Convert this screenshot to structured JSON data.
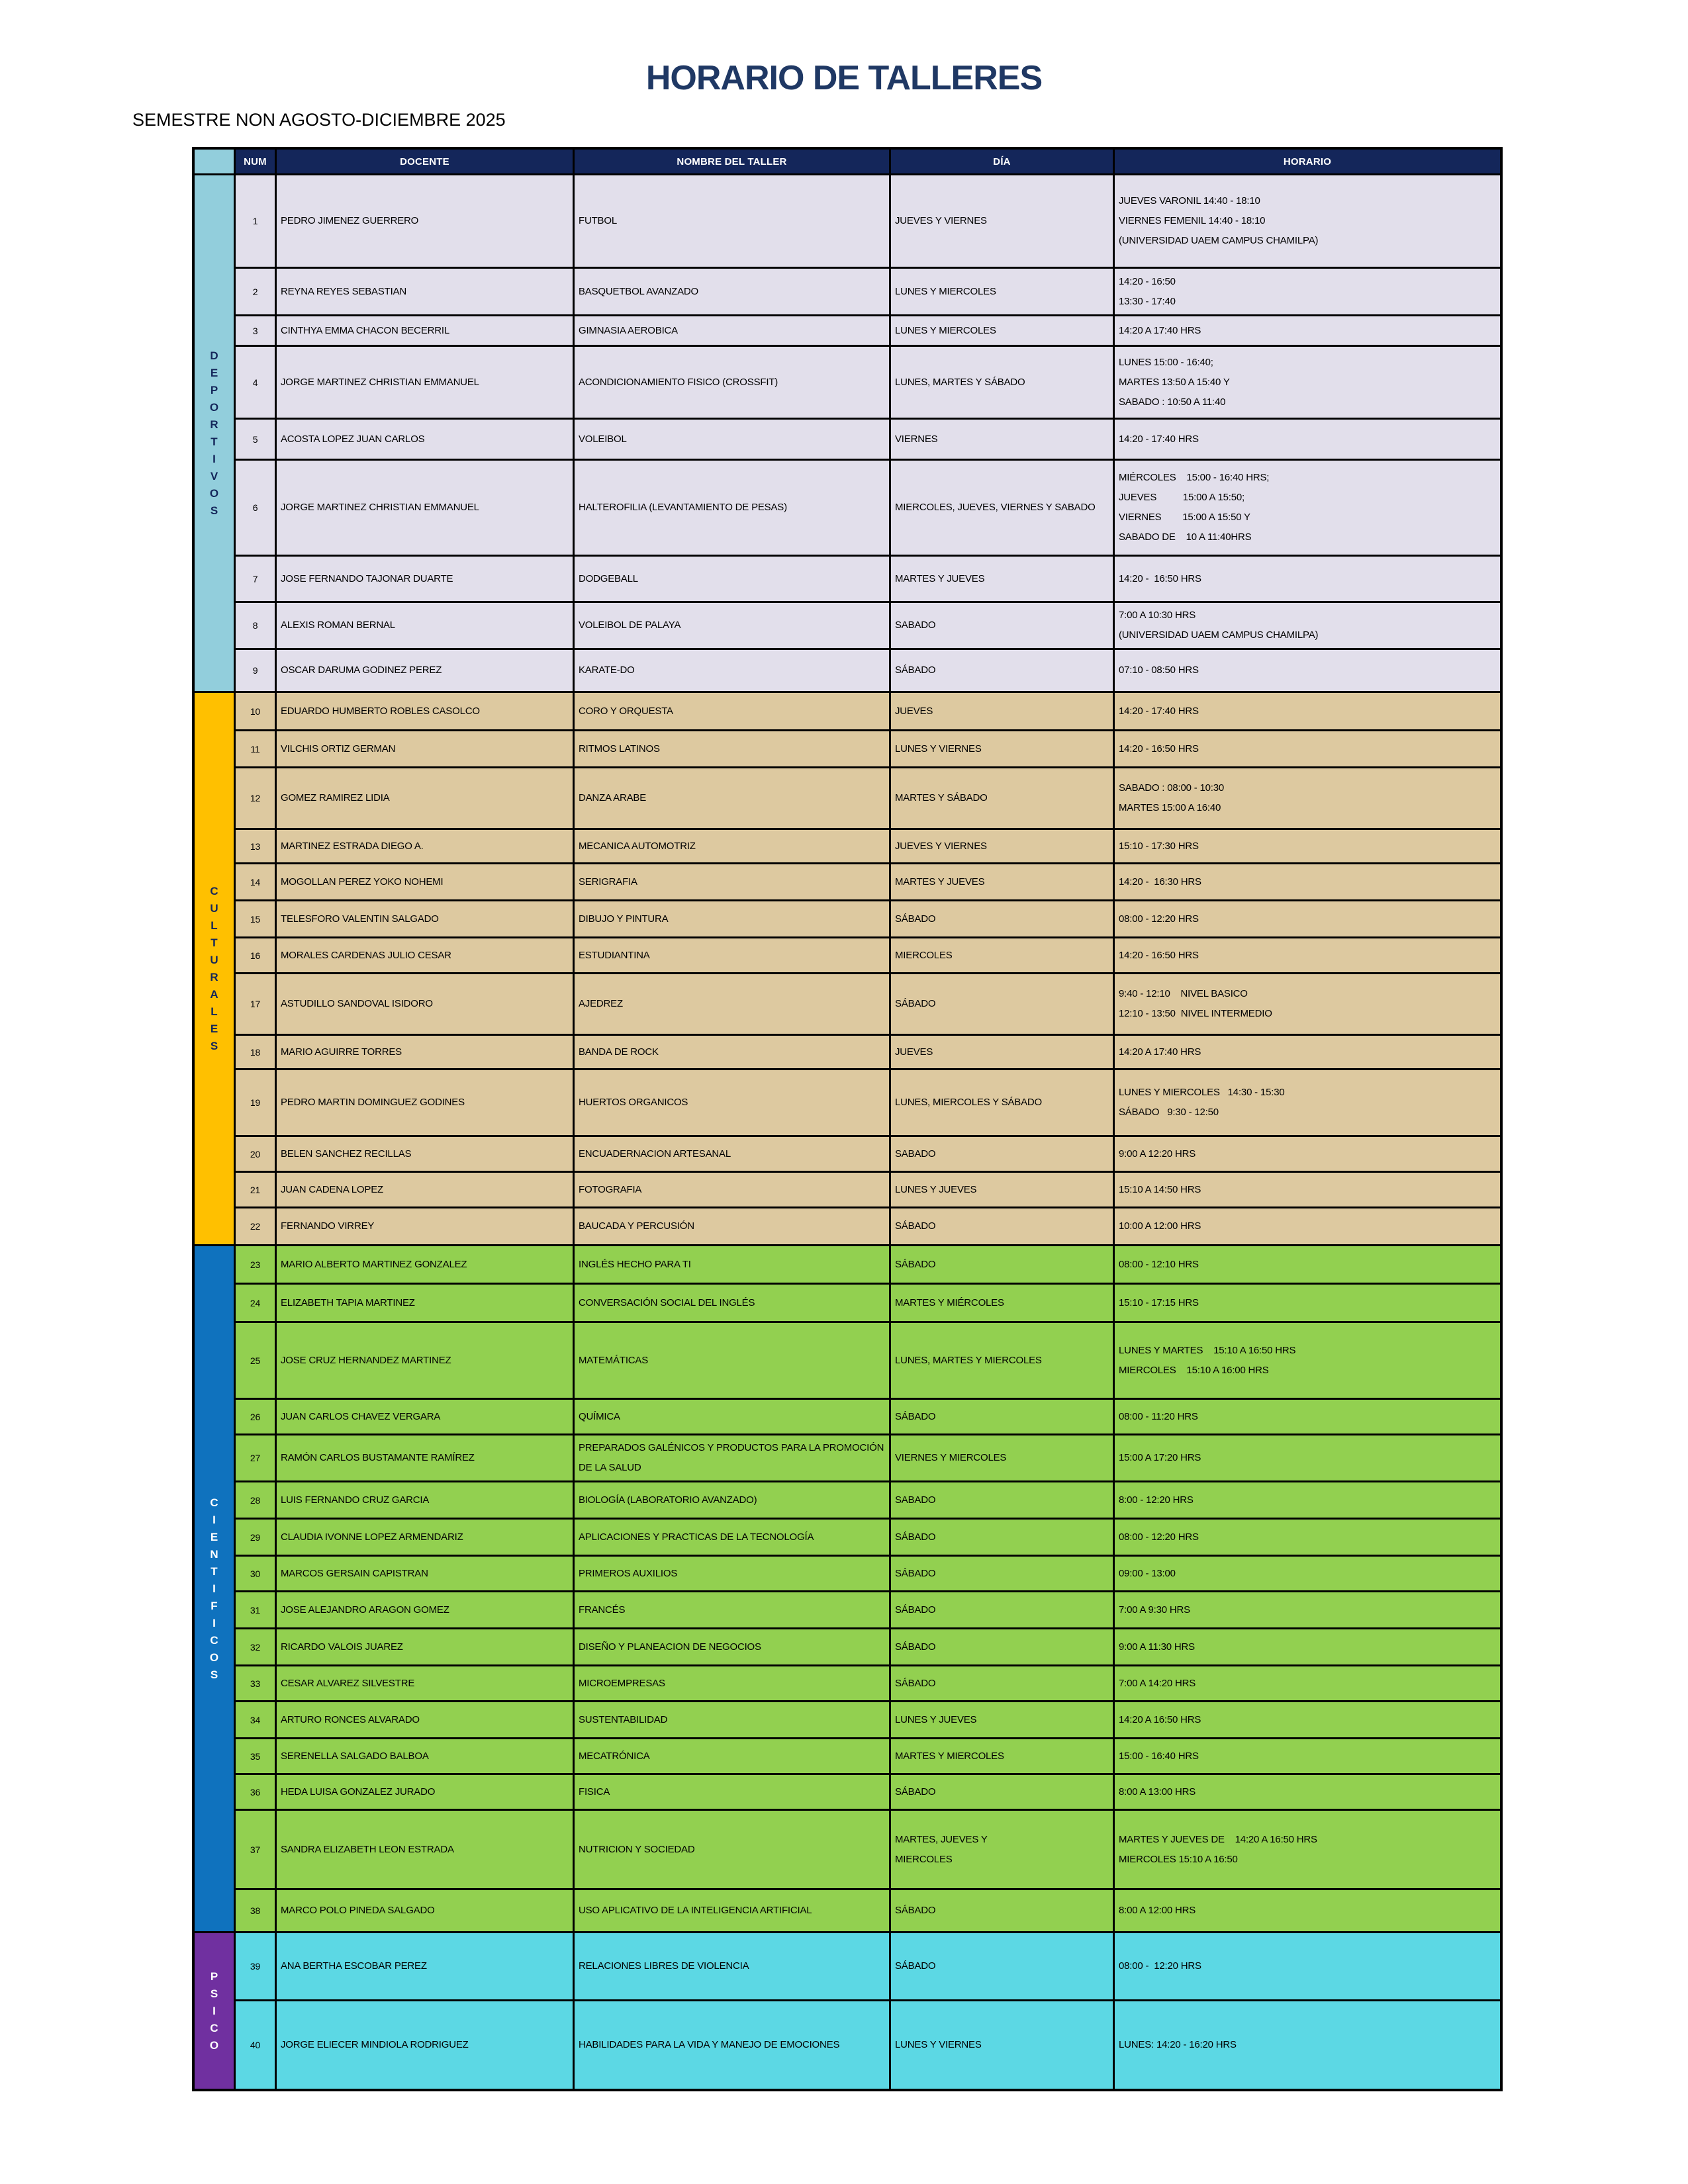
{
  "page": {
    "title": "HORARIO DE TALLERES",
    "subtitle": "SEMESTRE NON AGOSTO-DICIEMBRE 2025"
  },
  "colors": {
    "title": "#1F3864",
    "header_bg": "#14265A",
    "header_text": "#FFFFFF",
    "border": "#000000",
    "page_bg": "#FFFFFF"
  },
  "table": {
    "headers": [
      "NUM",
      "DOCENTE",
      "NOMBRE DEL TALLER",
      "DÍA",
      "HORARIO"
    ],
    "sections": [
      {
        "name": "DEPORTIVOS",
        "band_color": "#92CEDC",
        "letter_color": "#14265A",
        "row_color": "#E2DFEB",
        "rows": [
          {
            "num": 1,
            "docente": "PEDRO JIMENEZ GUERRERO",
            "taller": "FUTBOL",
            "dia": "JUEVES Y VIERNES",
            "horario": "JUEVES VARONIL 14:40 - 18:10\nVIERNES FEMENIL 14:40 - 18:10\n(UNIVERSIDAD UAEM CAMPUS CHAMILPA)",
            "h": 141
          },
          {
            "num": 2,
            "docente": "REYNA REYES SEBASTIAN",
            "taller": "BASQUETBOL AVANZADO",
            "dia": "LUNES Y MIERCOLES",
            "horario": "14:20 - 16:50\n13:30 - 17:40",
            "h": 72
          },
          {
            "num": 3,
            "docente": "CINTHYA EMMA CHACON BECERRIL",
            "taller": "GIMNASIA AEROBICA",
            "dia": "LUNES Y MIERCOLES",
            "horario": "14:20 A 17:40 HRS",
            "h": 46
          },
          {
            "num": 4,
            "docente": "JORGE MARTINEZ CHRISTIAN EMMANUEL",
            "taller": "ACONDICIONAMIENTO FISICO (CROSSFIT)",
            "dia": "LUNES, MARTES Y SÁBADO",
            "horario": "LUNES 15:00 - 16:40;\nMARTES 13:50 A 15:40 Y\nSABADO : 10:50 A 11:40",
            "h": 110
          },
          {
            "num": 5,
            "docente": "ACOSTA LOPEZ JUAN CARLOS",
            "taller": "VOLEIBOL",
            "dia": "VIERNES",
            "horario": "14:20 - 17:40 HRS",
            "h": 62
          },
          {
            "num": 6,
            "docente": "JORGE MARTINEZ CHRISTIAN EMMANUEL",
            "taller": "HALTEROFILIA (LEVANTAMIENTO DE PESAS)",
            "dia": "MIERCOLES, JUEVES, VIERNES Y SABADO",
            "horario": "MIÉRCOLES    15:00 - 16:40 HRS;\nJUEVES          15:00 A 15:50;\nVIERNES        15:00 A 15:50 Y\nSABADO DE    10 A 11:40HRS",
            "h": 145
          },
          {
            "num": 7,
            "docente": "JOSE FERNANDO TAJONAR DUARTE",
            "taller": "DODGEBALL",
            "dia": "MARTES Y JUEVES",
            "horario": "14:20 -  16:50 HRS",
            "h": 70
          },
          {
            "num": 8,
            "docente": "ALEXIS ROMAN BERNAL",
            "taller": "VOLEIBOL DE PALAYA",
            "dia": "SABADO",
            "horario": "7:00 A 10:30 HRS\n(UNIVERSIDAD UAEM CAMPUS CHAMILPA)",
            "h": 66
          },
          {
            "num": 9,
            "docente": "OSCAR DARUMA GODINEZ PEREZ",
            "taller": "KARATE-DO",
            "dia": "SÁBADO",
            "horario": "07:10 - 08:50 HRS",
            "h": 62
          }
        ]
      },
      {
        "name": "CULTURALES",
        "band_color": "#FFC000",
        "letter_color": "#14265A",
        "row_color": "#DDC9A0",
        "rows": [
          {
            "num": 10,
            "docente": "EDUARDO HUMBERTO ROBLES CASOLCO",
            "taller": "CORO Y ORQUESTA",
            "dia": "JUEVES",
            "horario": "14:20 - 17:40 HRS",
            "h": 58
          },
          {
            "num": 11,
            "docente": "VILCHIS ORTIZ GERMAN",
            "taller": "RITMOS LATINOS",
            "dia": "LUNES Y VIERNES",
            "horario": "14:20 - 16:50 HRS",
            "h": 56
          },
          {
            "num": 12,
            "docente": "GOMEZ RAMIREZ LIDIA",
            "taller": "DANZA ARABE",
            "dia": "MARTES Y SÁBADO",
            "horario": "SABADO : 08:00 - 10:30\nMARTES 15:00 A 16:40",
            "h": 93
          },
          {
            "num": 13,
            "docente": "MARTINEZ ESTRADA DIEGO A.",
            "taller": "MECANICA AUTOMOTRIZ",
            "dia": "JUEVES Y VIERNES",
            "horario": "15:10 - 17:30 HRS",
            "h": 52
          },
          {
            "num": 14,
            "docente": "MOGOLLAN PEREZ YOKO NOHEMI",
            "taller": "SERIGRAFIA",
            "dia": "MARTES Y JUEVES",
            "horario": "14:20 -  16:30 HRS",
            "h": 56
          },
          {
            "num": 15,
            "docente": "TELESFORO VALENTIN SALGADO",
            "taller": "DIBUJO Y PINTURA",
            "dia": "SÁBADO",
            "horario": "08:00 - 12:20 HRS",
            "h": 56
          },
          {
            "num": 16,
            "docente": "MORALES CARDENAS JULIO CESAR",
            "taller": "ESTUDIANTINA",
            "dia": "MIERCOLES",
            "horario": "14:20 - 16:50 HRS",
            "h": 54
          },
          {
            "num": 17,
            "docente": "ASTUDILLO SANDOVAL ISIDORO",
            "taller": "AJEDREZ",
            "dia": "SÁBADO",
            "horario": "9:40 - 12:10    NIVEL BASICO\n12:10 - 13:50  NIVEL INTERMEDIO",
            "h": 93
          },
          {
            "num": 18,
            "docente": "MARIO AGUIRRE TORRES",
            "taller": "BANDA DE ROCK",
            "dia": "JUEVES",
            "horario": "14:20 A 17:40 HRS",
            "h": 52
          },
          {
            "num": 19,
            "docente": "PEDRO MARTIN DOMINGUEZ GODINES",
            "taller": "HUERTOS ORGANICOS",
            "dia": "LUNES, MIERCOLES Y SÁBADO",
            "horario": "LUNES Y MIERCOLES   14:30 - 15:30\nSÁBADO   9:30 - 12:50",
            "h": 101
          },
          {
            "num": 20,
            "docente": "BELEN SANCHEZ RECILLAS",
            "taller": "ENCUADERNACION ARTESANAL",
            "dia": "SABADO",
            "horario": "9:00 A 12:20 HRS",
            "h": 54
          },
          {
            "num": 21,
            "docente": "JUAN CADENA LOPEZ",
            "taller": "FOTOGRAFIA",
            "dia": "LUNES Y JUEVES",
            "horario": "15:10 A 14:50 HRS",
            "h": 54
          },
          {
            "num": 22,
            "docente": "FERNANDO VIRREY",
            "taller": "BAUCADA Y PERCUSIÓN",
            "dia": "SÁBADO",
            "horario": "10:00 A 12:00 HRS",
            "h": 54
          }
        ]
      },
      {
        "name": "CIENTIFICOS",
        "band_color": "#0F72BE",
        "letter_color": "#FFFFFF",
        "row_color": "#92D050",
        "rows": [
          {
            "num": 23,
            "docente": "MARIO ALBERTO MARTINEZ GONZALEZ",
            "taller": "INGLÉS HECHO PARA TI",
            "dia": "SÁBADO",
            "horario": "08:00 - 12:10 HRS",
            "h": 58
          },
          {
            "num": 24,
            "docente": "ELIZABETH TAPIA MARTINEZ",
            "taller": "CONVERSACIÓN SOCIAL DEL INGLÉS",
            "dia": "MARTES Y MIÉRCOLES",
            "horario": "15:10 - 17:15 HRS",
            "h": 58
          },
          {
            "num": 25,
            "docente": "JOSE CRUZ HERNANDEZ MARTINEZ",
            "taller": "MATEMÁTICAS",
            "dia": "LUNES, MARTES Y MIERCOLES",
            "horario": "LUNES Y MARTES    15:10 A 16:50 HRS\nMIERCOLES    15:10 A 16:00 HRS",
            "h": 116
          },
          {
            "num": 26,
            "docente": "JUAN CARLOS CHAVEZ VERGARA",
            "taller": "QUÍMICA",
            "dia": "SÁBADO",
            "horario": "08:00 - 11:20 HRS",
            "h": 54
          },
          {
            "num": 27,
            "docente": "RAMÓN CARLOS BUSTAMANTE RAMÍREZ",
            "taller": "PREPARADOS GALÉNICOS Y PRODUCTOS PARA LA PROMOCIÓN DE LA SALUD",
            "dia": "VIERNES Y MIERCOLES",
            "horario": "15:00 A 17:20 HRS",
            "h": 56
          },
          {
            "num": 28,
            "docente": "LUIS FERNANDO CRUZ GARCIA",
            "taller": "BIOLOGÍA (LABORATORIO AVANZADO)",
            "dia": "SABADO",
            "horario": "8:00 - 12:20 HRS",
            "h": 56
          },
          {
            "num": 29,
            "docente": "CLAUDIA IVONNE LOPEZ ARMENDARIZ",
            "taller": "APLICACIONES Y PRACTICAS DE LA TECNOLOGÍA",
            "dia": "SÁBADO",
            "horario": "08:00 - 12:20 HRS",
            "h": 56
          },
          {
            "num": 30,
            "docente": "MARCOS GERSAIN CAPISTRAN",
            "taller": "PRIMEROS AUXILIOS",
            "dia": "SÁBADO",
            "horario": "09:00 - 13:00",
            "h": 54
          },
          {
            "num": 31,
            "docente": "JOSE ALEJANDRO ARAGON GOMEZ",
            "taller": "FRANCÉS",
            "dia": "SÁBADO",
            "horario": "7:00 A 9:30 HRS",
            "h": 56
          },
          {
            "num": 32,
            "docente": "RICARDO VALOIS JUAREZ",
            "taller": "DISEÑO Y PLANEACION DE NEGOCIOS",
            "dia": "SÁBADO",
            "horario": "9:00 A 11:30 HRS",
            "h": 56
          },
          {
            "num": 33,
            "docente": "CESAR ALVAREZ SILVESTRE",
            "taller": "MICROEMPRESAS",
            "dia": "SÁBADO",
            "horario": "7:00 A 14:20 HRS",
            "h": 54
          },
          {
            "num": 34,
            "docente": "ARTURO RONCES ALVARADO",
            "taller": "SUSTENTABILIDAD",
            "dia": "LUNES Y JUEVES",
            "horario": "14:20 A 16:50 HRS",
            "h": 56
          },
          {
            "num": 35,
            "docente": "SERENELLA SALGADO BALBOA",
            "taller": "MECATRÓNICA",
            "dia": "MARTES Y MIERCOLES",
            "horario": "15:00 - 16:40 HRS",
            "h": 54
          },
          {
            "num": 36,
            "docente": "HEDA LUISA GONZALEZ JURADO",
            "taller": "FISICA",
            "dia": "SÁBADO",
            "horario": "8:00 A 13:00 HRS",
            "h": 54
          },
          {
            "num": 37,
            "docente": "SANDRA ELIZABETH LEON ESTRADA",
            "taller": "NUTRICION Y SOCIEDAD",
            "dia": "MARTES, JUEVES Y\nMIERCOLES",
            "horario": "MARTES Y JUEVES DE    14:20 A 16:50 HRS\nMIERCOLES 15:10 A 16:50",
            "h": 120
          },
          {
            "num": 38,
            "docente": "MARCO POLO PINEDA SALGADO",
            "taller": "USO APLICATIVO DE LA INTELIGENCIA ARTIFICIAL",
            "dia": "SÁBADO",
            "horario": "8:00 A 12:00 HRS",
            "h": 62
          }
        ]
      },
      {
        "name": "PSICO",
        "band_color": "#7030A0",
        "letter_color": "#FFFFFF",
        "row_color": "#5CD8E4",
        "rows": [
          {
            "num": 39,
            "docente": "ANA BERTHA ESCOBAR PEREZ",
            "taller": "RELACIONES LIBRES DE VIOLENCIA",
            "dia": "SÁBADO",
            "horario": "08:00 -  12:20 HRS",
            "h": 103
          },
          {
            "num": 40,
            "docente": "JORGE ELIECER MINDIOLA RODRIGUEZ",
            "taller": "HABILIDADES PARA LA VIDA Y MANEJO DE EMOCIONES",
            "dia": "LUNES Y VIERNES",
            "horario": "LUNES: 14:20 - 16:20 HRS",
            "h": 132
          }
        ]
      }
    ]
  }
}
